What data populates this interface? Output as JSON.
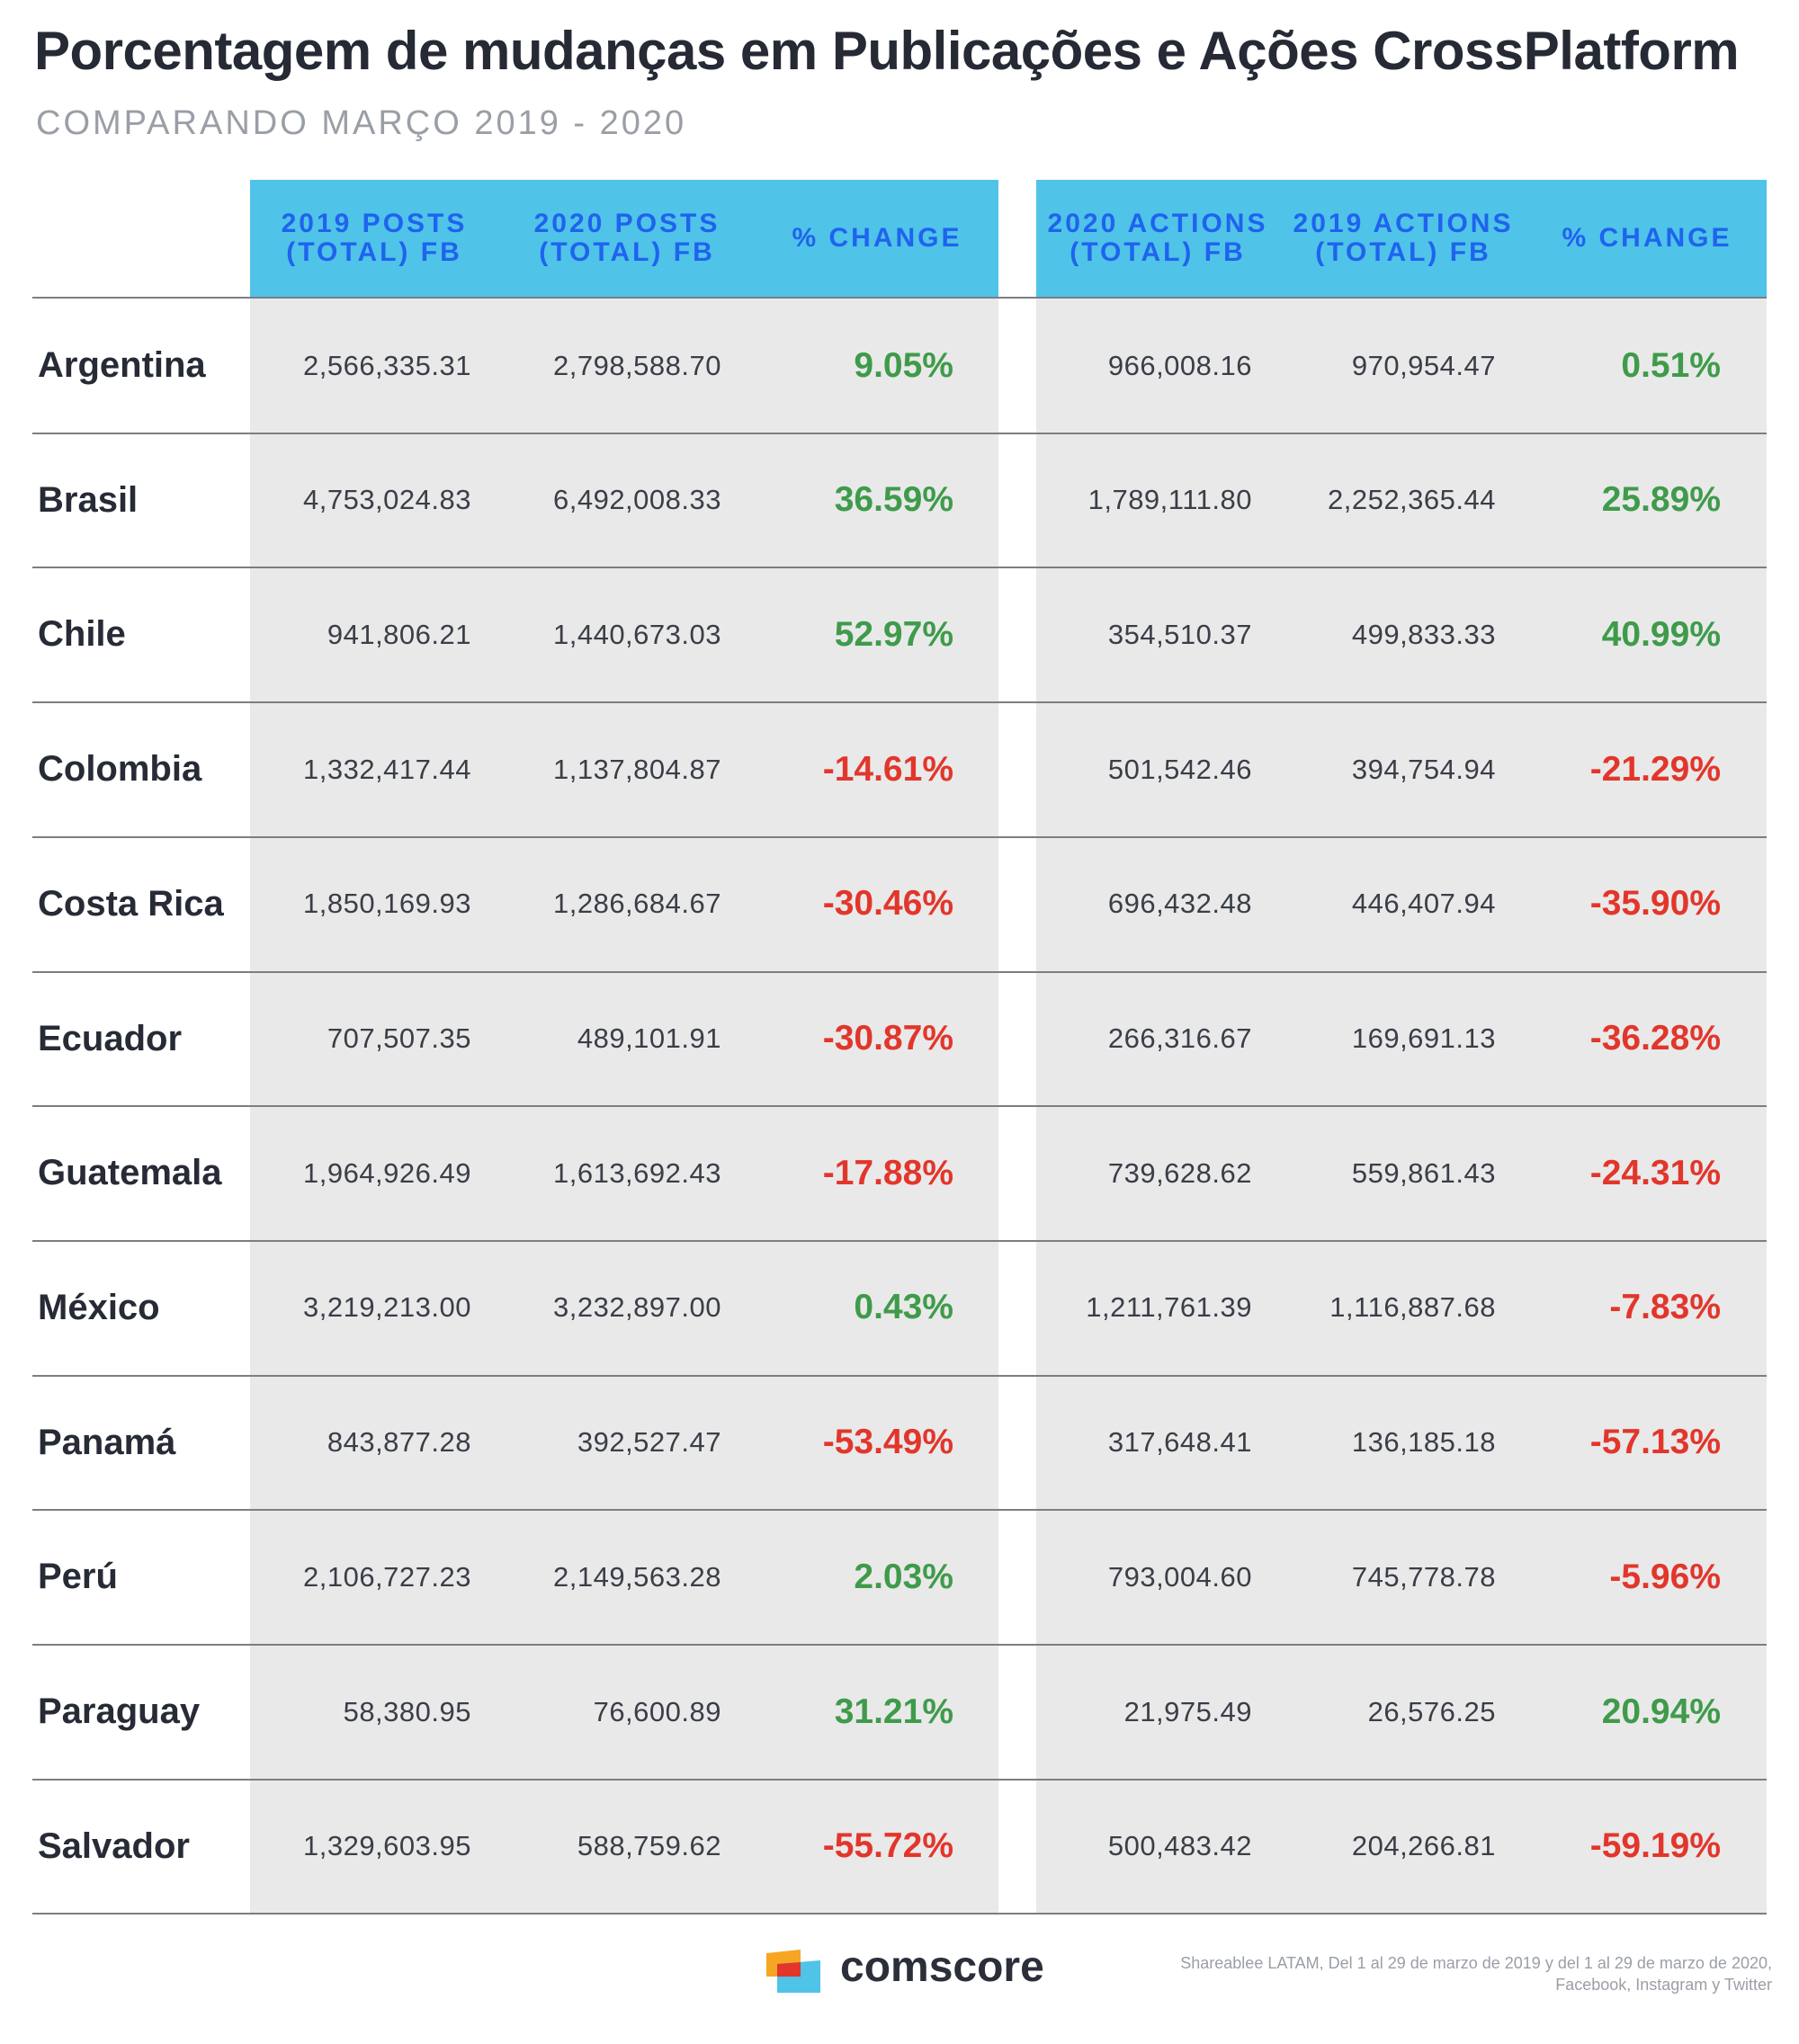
{
  "title": "Porcentagem de mudanças em Publicações e Ações CrossPlatform",
  "subtitle": "COMPARANDO MARÇO 2019 - 2020",
  "headers": [
    "2019 POSTS\n(TOTAL) FB",
    "2020  POSTS\n(TOTAL) FB",
    "% CHANGE",
    "2020 ACTIONS\n(TOTAL) FB",
    "2019 ACTIONS\n(TOTAL) FB",
    "% CHANGE"
  ],
  "rows": [
    {
      "country": "Argentina",
      "posts2019": "2,566,335.31",
      "posts2020": "2,798,588.70",
      "posts_change": "9.05%",
      "actions2020": "966,008.16",
      "actions2019": "970,954.47",
      "actions_change": "0.51%"
    },
    {
      "country": "Brasil",
      "posts2019": "4,753,024.83",
      "posts2020": "6,492,008.33",
      "posts_change": "36.59%",
      "actions2020": "1,789,111.80",
      "actions2019": "2,252,365.44",
      "actions_change": "25.89%"
    },
    {
      "country": "Chile",
      "posts2019": "941,806.21",
      "posts2020": "1,440,673.03",
      "posts_change": "52.97%",
      "actions2020": "354,510.37",
      "actions2019": "499,833.33",
      "actions_change": "40.99%"
    },
    {
      "country": "Colombia",
      "posts2019": "1,332,417.44",
      "posts2020": "1,137,804.87",
      "posts_change": "-14.61%",
      "actions2020": "501,542.46",
      "actions2019": "394,754.94",
      "actions_change": "-21.29%"
    },
    {
      "country": "Costa Rica",
      "posts2019": "1,850,169.93",
      "posts2020": "1,286,684.67",
      "posts_change": "-30.46%",
      "actions2020": "696,432.48",
      "actions2019": "446,407.94",
      "actions_change": "-35.90%"
    },
    {
      "country": "Ecuador",
      "posts2019": "707,507.35",
      "posts2020": "489,101.91",
      "posts_change": "-30.87%",
      "actions2020": "266,316.67",
      "actions2019": "169,691.13",
      "actions_change": "-36.28%"
    },
    {
      "country": "Guatemala",
      "posts2019": "1,964,926.49",
      "posts2020": "1,613,692.43",
      "posts_change": "-17.88%",
      "actions2020": "739,628.62",
      "actions2019": "559,861.43",
      "actions_change": "-24.31%"
    },
    {
      "country": "México",
      "posts2019": "3,219,213.00",
      "posts2020": "3,232,897.00",
      "posts_change": "0.43%",
      "actions2020": "1,211,761.39",
      "actions2019": "1,116,887.68",
      "actions_change": "-7.83%"
    },
    {
      "country": "Panamá",
      "posts2019": "843,877.28",
      "posts2020": "392,527.47",
      "posts_change": "-53.49%",
      "actions2020": "317,648.41",
      "actions2019": "136,185.18",
      "actions_change": "-57.13%"
    },
    {
      "country": "Perú",
      "posts2019": "2,106,727.23",
      "posts2020": "2,149,563.28",
      "posts_change": "2.03%",
      "actions2020": "793,004.60",
      "actions2019": "745,778.78",
      "actions_change": "-5.96%"
    },
    {
      "country": "Paraguay",
      "posts2019": "58,380.95",
      "posts2020": "76,600.89",
      "posts_change": "31.21%",
      "actions2020": "21,975.49",
      "actions2019": "26,576.25",
      "actions_change": "20.94%"
    },
    {
      "country": "Salvador",
      "posts2019": "1,329,603.95",
      "posts2020": "588,759.62",
      "posts_change": "-55.72%",
      "actions2020": "500,483.42",
      "actions2019": "204,266.81",
      "actions_change": "-59.19%"
    }
  ],
  "footer": {
    "brand": "comscore",
    "source_line1": "Shareablee LATAM, Del 1 al 29 de marzo de 2019 y del 1 al 29 de marzo de 2020,",
    "source_line2": "Facebook, Instagram y Twitter"
  },
  "colors": {
    "header_bg": "#4fc3e8",
    "header_text": "#1f63ee",
    "positive": "#3f9b4a",
    "negative": "#e2362b",
    "column_bg": "#e9e9ea"
  }
}
